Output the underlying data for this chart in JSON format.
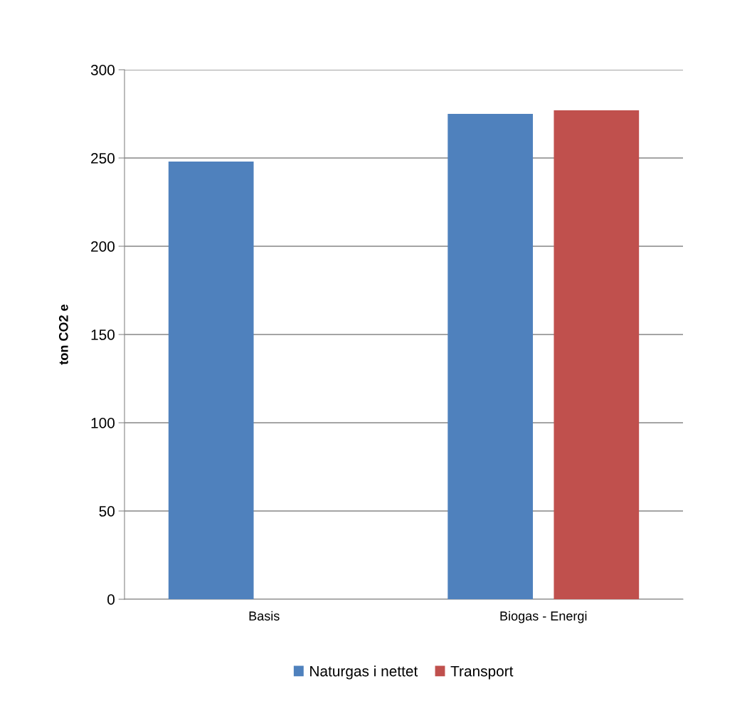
{
  "chart_data": {
    "type": "bar",
    "ylabel": "ton CO2 e",
    "categories": [
      "Basis",
      "Biogas - Energi"
    ],
    "series": [
      {
        "name": "Naturgas i nettet",
        "color": "#4f81bd",
        "values": [
          248,
          275
        ]
      },
      {
        "name": "Transport",
        "color": "#c0504d",
        "values": [
          null,
          277
        ]
      }
    ],
    "ylim": [
      0,
      300
    ],
    "yticks": [
      0,
      50,
      100,
      150,
      200,
      250,
      300
    ],
    "grid": "y",
    "legend": "bottom"
  }
}
